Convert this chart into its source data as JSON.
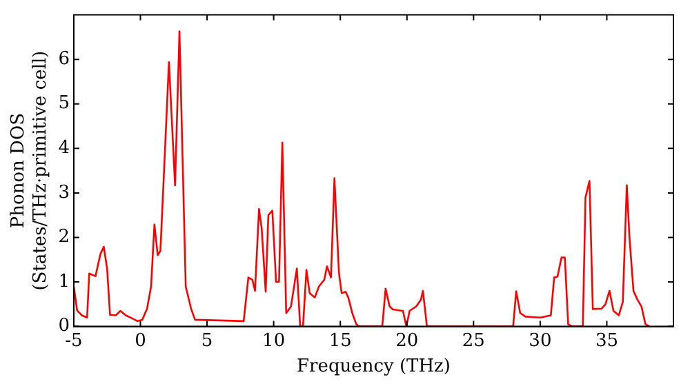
{
  "chart_data": {
    "type": "line",
    "xlabel": "Frequency (THz)",
    "ylabel": "Phonon DOS\n(States/THz·primitive cell)",
    "xlim": [
      -5,
      40
    ],
    "ylim": [
      0,
      7
    ],
    "xticks": [
      -5,
      0,
      5,
      10,
      15,
      20,
      25,
      30,
      35
    ],
    "yticks": [
      0,
      1,
      2,
      3,
      4,
      5,
      6
    ],
    "grid": false,
    "legend": false,
    "marker": "none",
    "line_style": "solid",
    "series": [
      {
        "color": "#ff0000",
        "x": [
          -5,
          -4.75,
          -4.4,
          -4.0,
          -3.84,
          -3.37,
          -3.0,
          -2.75,
          -2.5,
          -2.28,
          -1.85,
          -1.5,
          -1.1,
          -0.75,
          -0.22,
          0.14,
          0.5,
          0.8,
          1.05,
          1.3,
          1.5,
          1.85,
          2.14,
          2.6,
          2.93,
          3.4,
          3.8,
          4.1,
          7.75,
          8.1,
          8.4,
          8.6,
          8.9,
          9.1,
          9.4,
          9.6,
          9.9,
          10.18,
          10.4,
          10.65,
          10.94,
          11.3,
          11.74,
          11.99,
          12.2,
          12.46,
          12.7,
          13.08,
          13.4,
          13.8,
          14.0,
          14.3,
          14.56,
          14.9,
          15.1,
          15.4,
          15.6,
          15.9,
          16.2,
          16.4,
          18.15,
          18.4,
          18.7,
          18.95,
          19.7,
          19.96,
          20.2,
          20.7,
          21.05,
          21.2,
          21.5,
          27.97,
          28.2,
          28.5,
          28.9,
          30.0,
          30.8,
          31.05,
          31.3,
          31.6,
          31.85,
          32.1,
          32.4,
          33.2,
          33.4,
          33.7,
          33.95,
          34.6,
          34.9,
          35.2,
          35.5,
          35.9,
          36.2,
          36.5,
          36.7,
          37.0,
          37.3,
          37.6,
          37.9,
          38.2
        ],
        "values": [
          0.9,
          0.36,
          0.25,
          0.2,
          1.19,
          1.13,
          1.63,
          1.79,
          1.3,
          0.26,
          0.25,
          0.35,
          0.25,
          0.2,
          0.12,
          0.15,
          0.4,
          0.9,
          2.29,
          1.6,
          1.7,
          4.0,
          5.94,
          3.17,
          6.63,
          0.9,
          0.4,
          0.15,
          0.12,
          1.1,
          1.05,
          0.8,
          2.64,
          2.2,
          0.78,
          2.5,
          2.6,
          1.0,
          1.0,
          4.13,
          0.3,
          0.45,
          1.3,
          0,
          0,
          1.27,
          0.75,
          0.65,
          0.9,
          1.05,
          1.35,
          1.1,
          3.33,
          1.2,
          0.75,
          0.78,
          0.65,
          0.3,
          0.05,
          0,
          0,
          0.85,
          0.45,
          0.38,
          0.35,
          0,
          0.35,
          0.45,
          0.6,
          0.8,
          0,
          0,
          0.79,
          0.3,
          0.22,
          0.2,
          0.25,
          1.1,
          1.12,
          1.55,
          1.55,
          0.05,
          0,
          0,
          2.9,
          3.27,
          0.39,
          0.4,
          0.5,
          0.8,
          0.35,
          0.25,
          0.55,
          3.17,
          2.0,
          0.8,
          0.6,
          0.45,
          0.05,
          0
        ]
      }
    ]
  }
}
